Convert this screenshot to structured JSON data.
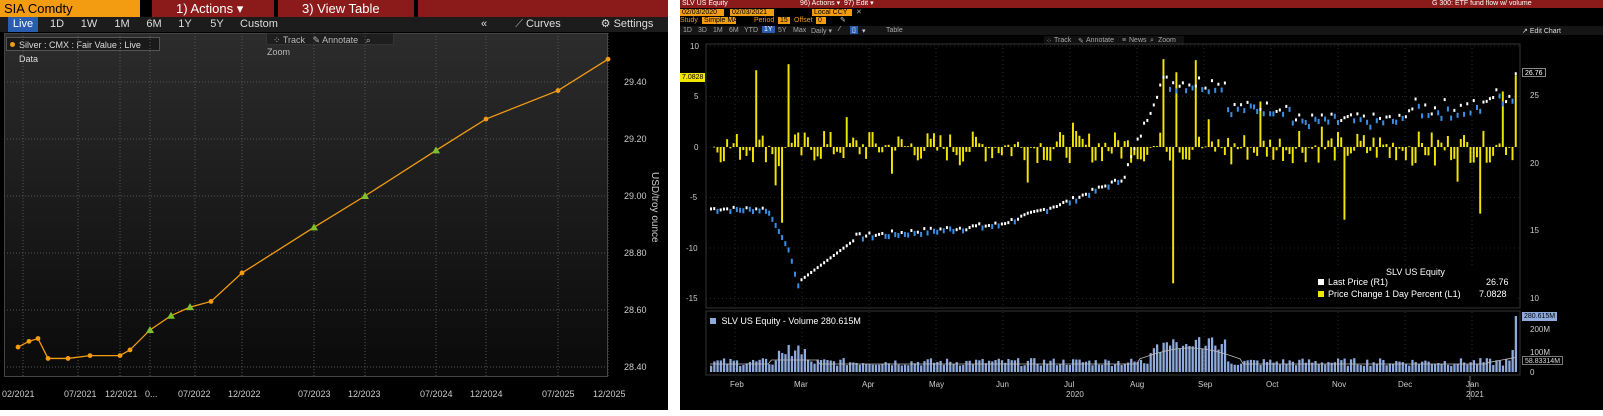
{
  "left": {
    "ticker": "SIA Comdty",
    "actions_btn": "1) Actions ▾",
    "view_table_btn": "3) View Table",
    "periods": [
      "Live",
      "1D",
      "1W",
      "1M",
      "6M",
      "1Y",
      "5Y",
      "Custom"
    ],
    "active_period": "Live",
    "collapse": "«",
    "curves_label": "Curves",
    "settings_label": "Settings",
    "legend_label": "Silver : CMX : Fair Value : Live Data",
    "tools": {
      "track": "Track",
      "annotate": "Annotate",
      "zoom": "Zoom"
    },
    "y_axis_label": "USD/troy ounce",
    "y_ticks": [
      "29.40",
      "29.20",
      "29.00",
      "28.80",
      "28.60",
      "28.40"
    ],
    "x_ticks": [
      "02/2021",
      "07/2021",
      "12/2021",
      "0...",
      "07/2022",
      "12/2022",
      "07/2023",
      "12/2023",
      "07/2024",
      "12/2024",
      "07/2025",
      "12/2025"
    ],
    "colors": {
      "line": "#f39c12",
      "marker_green": "#7ec02a",
      "ticker_bg": "#f39c12",
      "button_bg": "#8b1a1a"
    }
  },
  "right": {
    "header_left": "SLV US  Equity",
    "header_actions": "96) Actions ▾",
    "header_edit": "97) Edit ▾",
    "header_right": "G 300: ETF fund flow w/ volume",
    "date_start": "02/03/2020",
    "date_end": "02/03/2021",
    "currency": "Local CCY",
    "study_label": "Study",
    "study_value": "Simple MA",
    "period_label": "Period",
    "period_value": "15",
    "offset_label": "Offset",
    "offset_value": "0",
    "range_buttons": [
      "1D",
      "3D",
      "1M",
      "6M",
      "YTD",
      "1Y",
      "5Y",
      "Max",
      "Daily ▾"
    ],
    "table_label": "Table",
    "edit_chart": "Edit Chart",
    "tools": {
      "track": "Track",
      "annotate": "Annotate",
      "news": "News",
      "zoom": "Zoom"
    },
    "left_y_ticks": [
      "10",
      "5",
      "0",
      "-5",
      "-10",
      "-15"
    ],
    "right_y_ticks": [
      "25",
      "20",
      "15",
      "10"
    ],
    "last_price_flag": "26.76",
    "pct_flag": "7.0828",
    "legend": {
      "title": "SLV US  Equity",
      "row1_label": "Last Price  (R1)",
      "row1_value": "26.76",
      "row2_label": "Price Change 1 Day Percent  (L1)",
      "row2_value": "7.0828"
    },
    "volume_label": "SLV US  Equity - Volume 280.615M",
    "volume_flag": "280.615M",
    "volume_ma_flag": "58.83314M",
    "volume_ticks": [
      "200M",
      "100M",
      "0"
    ],
    "months": [
      "Feb",
      "Mar",
      "Apr",
      "May",
      "Jun",
      "Jul",
      "Aug",
      "Sep",
      "Oct",
      "Nov",
      "Dec",
      "Jan"
    ],
    "years": [
      "2020",
      "2021"
    ],
    "colors": {
      "bars": "#f2e600",
      "price_up": "#ffffff",
      "price_down": "#3a8ee6",
      "header_bg": "#8b1a1a"
    }
  },
  "chart_data": [
    {
      "type": "line",
      "title": "Silver : CMX : Fair Value : Live Data",
      "ylabel": "USD/troy ounce",
      "ylim": [
        28.35,
        29.6
      ],
      "x": [
        "02/2021",
        "03/2021",
        "04/2021",
        "05/2021",
        "07/2021",
        "09/2021",
        "12/2021",
        "01/2022",
        "03/2022",
        "05/2022",
        "07/2022",
        "09/2022",
        "12/2022",
        "07/2023",
        "12/2023",
        "07/2024",
        "12/2024",
        "07/2025",
        "12/2025"
      ],
      "series": [
        {
          "values": [
            28.47,
            28.49,
            28.5,
            28.43,
            28.43,
            28.44,
            28.44,
            28.46,
            28.53,
            28.58,
            28.61,
            28.63,
            28.73,
            28.89,
            29.0,
            29.16,
            29.27,
            29.37,
            29.48
          ]
        }
      ]
    },
    {
      "type": "bar",
      "title": "SLV US  Equity",
      "series": [
        {
          "name": "Price Change 1 Day Percent  (L1)",
          "axis": "left",
          "ylim": [
            -15,
            10
          ],
          "last": 7.0828
        },
        {
          "name": "Last Price  (R1)",
          "axis": "right",
          "ylim": [
            10,
            28
          ],
          "last": 26.76
        }
      ],
      "volume": {
        "label": "SLV US  Equity - Volume",
        "last": "280.615M",
        "ma": "58.83314M",
        "ylim": [
          0,
          300
        ]
      }
    }
  ]
}
